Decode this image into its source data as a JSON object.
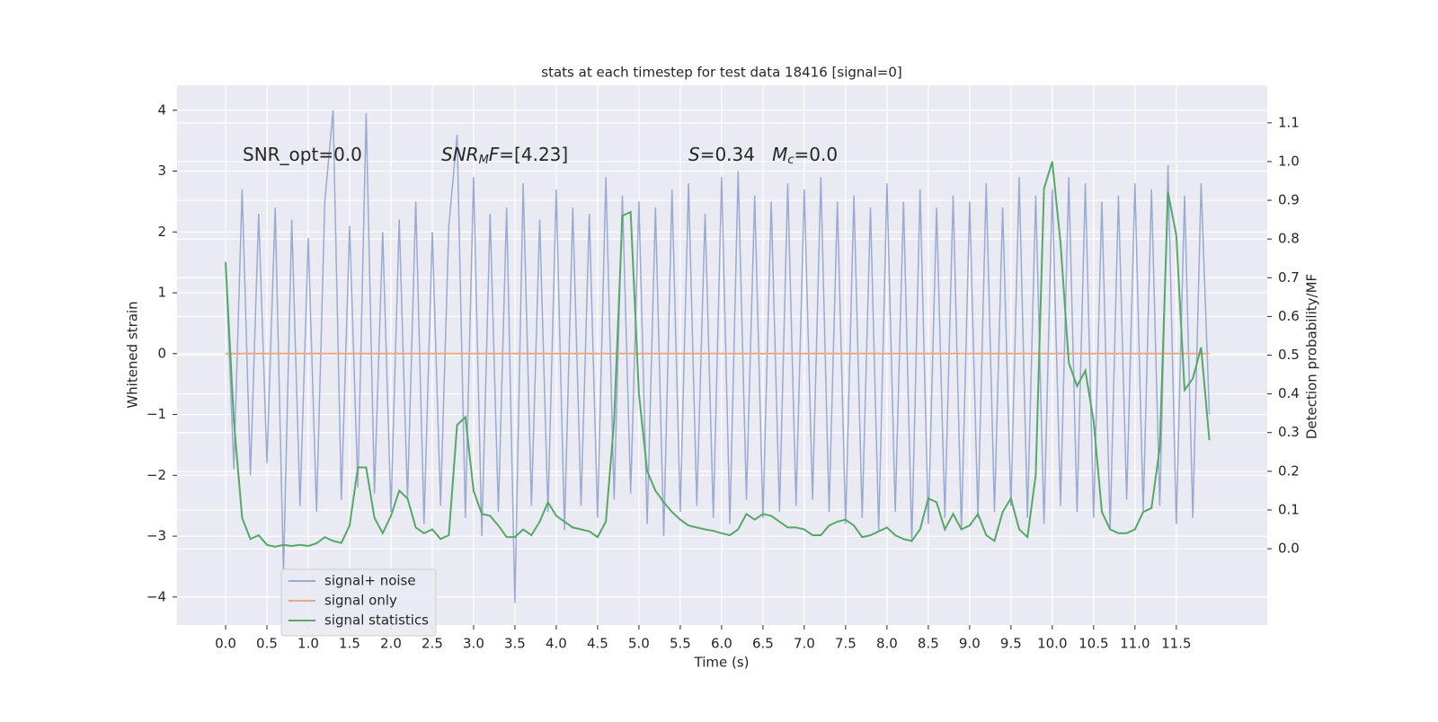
{
  "chart_data": {
    "type": "line",
    "title": "stats at each timestep for test data 18416 [signal=0]",
    "xlabel": "Time (s)",
    "ylabel": "Whitened strain",
    "y2label": "Detection probability/MF",
    "annotations": [
      {
        "parts": [
          {
            "t": "SNR_opt=0.0"
          }
        ]
      },
      {
        "parts": [
          {
            "t": "SNR",
            "italic": true
          },
          {
            "t": "M",
            "italic": true,
            "sub": true
          },
          {
            "t": "F",
            "italic": true
          },
          {
            "t": "=[4.23]"
          }
        ]
      },
      {
        "parts": [
          {
            "t": "S",
            "italic": true
          },
          {
            "t": "=0.34   "
          },
          {
            "t": "M",
            "italic": true
          },
          {
            "t": "c",
            "italic": true,
            "sub": true
          },
          {
            "t": "=0.0"
          }
        ]
      }
    ],
    "x": [
      0,
      0.1,
      0.2,
      0.3,
      0.4,
      0.5,
      0.6,
      0.7,
      0.8,
      0.9,
      1,
      1.1,
      1.2,
      1.3,
      1.4,
      1.5,
      1.6,
      1.7,
      1.8,
      1.9,
      2,
      2.1,
      2.2,
      2.3,
      2.4,
      2.5,
      2.6,
      2.7,
      2.8,
      2.9,
      3,
      3.1,
      3.2,
      3.3,
      3.4,
      3.5,
      3.6,
      3.7,
      3.8,
      3.9,
      4,
      4.1,
      4.2,
      4.3,
      4.4,
      4.5,
      4.6,
      4.7,
      4.8,
      4.9,
      5,
      5.1,
      5.2,
      5.3,
      5.4,
      5.5,
      5.6,
      5.7,
      5.8,
      5.9,
      6,
      6.1,
      6.2,
      6.3,
      6.4,
      6.5,
      6.6,
      6.7,
      6.8,
      6.9,
      7,
      7.1,
      7.2,
      7.3,
      7.4,
      7.5,
      7.6,
      7.7,
      7.8,
      7.9,
      8,
      8.1,
      8.2,
      8.3,
      8.4,
      8.5,
      8.6,
      8.7,
      8.8,
      8.9,
      9,
      9.1,
      9.2,
      9.3,
      9.4,
      9.5,
      9.6,
      9.7,
      9.8,
      9.9,
      10,
      10.1,
      10.2,
      10.3,
      10.4,
      10.5,
      10.6,
      10.7,
      10.8,
      10.9,
      11,
      11.1,
      11.2,
      11.3,
      11.4,
      11.5,
      11.6,
      11.7,
      11.8,
      11.9
    ],
    "series": [
      {
        "name": "signal+ noise",
        "color": "#9aaad2",
        "axis": "y",
        "values": [
          1.5,
          -1.9,
          2.7,
          -2.0,
          2.3,
          -1.8,
          2.4,
          -3.6,
          2.2,
          -2.5,
          1.9,
          -2.6,
          2.5,
          4.0,
          -2.4,
          2.1,
          -2.2,
          3.95,
          -2.3,
          2.0,
          -2.6,
          2.2,
          -2.4,
          2.5,
          -2.8,
          2.0,
          -2.5,
          2.1,
          3.6,
          -2.7,
          2.9,
          -3.0,
          2.3,
          -2.6,
          2.4,
          -4.1,
          2.8,
          -2.5,
          2.2,
          -2.6,
          2.7,
          -2.9,
          2.4,
          -2.5,
          2.3,
          -2.7,
          2.9,
          -2.4,
          2.6,
          -2.3,
          2.5,
          -2.8,
          2.4,
          -3.0,
          2.7,
          -2.6,
          2.8,
          -2.5,
          2.3,
          -2.7,
          2.9,
          -2.8,
          3.0,
          -2.4,
          2.6,
          -2.7,
          2.5,
          -2.6,
          2.8,
          -2.5,
          2.7,
          -2.4,
          2.9,
          -2.6,
          2.5,
          -2.8,
          2.6,
          -2.7,
          2.4,
          -2.9,
          2.8,
          -2.6,
          2.5,
          -3.1,
          2.7,
          -2.8,
          2.4,
          -2.7,
          2.6,
          -2.9,
          2.5,
          -2.7,
          2.8,
          -2.6,
          2.4,
          -2.5,
          2.9,
          -2.7,
          2.6,
          -2.8,
          2.7,
          -2.5,
          2.9,
          -2.6,
          2.8,
          -2.7,
          2.5,
          -2.9,
          2.6,
          -2.4,
          2.8,
          -2.6,
          2.7,
          -2.5,
          3.1,
          -2.8,
          2.6,
          -2.7,
          2.8,
          -1.0
        ]
      },
      {
        "name": "signal only",
        "color": "#e8a88a",
        "axis": "y",
        "values": [
          0,
          0,
          0,
          0,
          0,
          0,
          0,
          0,
          0,
          0,
          0,
          0,
          0,
          0,
          0,
          0,
          0,
          0,
          0,
          0,
          0,
          0,
          0,
          0,
          0,
          0,
          0,
          0,
          0,
          0,
          0,
          0,
          0,
          0,
          0,
          0,
          0,
          0,
          0,
          0,
          0,
          0,
          0,
          0,
          0,
          0,
          0,
          0,
          0,
          0,
          0,
          0,
          0,
          0,
          0,
          0,
          0,
          0,
          0,
          0,
          0,
          0,
          0,
          0,
          0,
          0,
          0,
          0,
          0,
          0,
          0,
          0,
          0,
          0,
          0,
          0,
          0,
          0,
          0,
          0,
          0,
          0,
          0,
          0,
          0,
          0,
          0,
          0,
          0,
          0,
          0,
          0,
          0,
          0,
          0,
          0,
          0,
          0,
          0,
          0,
          0,
          0,
          0,
          0,
          0,
          0,
          0,
          0,
          0,
          0,
          0,
          0,
          0,
          0,
          0,
          0,
          0,
          0,
          0,
          0
        ]
      },
      {
        "name": "signal statistics",
        "color": "#55a868",
        "axis": "y2",
        "values": [
          0.74,
          0.33,
          0.08,
          0.025,
          0.035,
          0.01,
          0.005,
          0.01,
          0.007,
          0.01,
          0.007,
          0.014,
          0.03,
          0.02,
          0.015,
          0.06,
          0.21,
          0.21,
          0.08,
          0.04,
          0.085,
          0.15,
          0.13,
          0.055,
          0.04,
          0.05,
          0.025,
          0.035,
          0.32,
          0.34,
          0.15,
          0.09,
          0.085,
          0.06,
          0.03,
          0.03,
          0.05,
          0.035,
          0.07,
          0.12,
          0.085,
          0.07,
          0.055,
          0.05,
          0.045,
          0.03,
          0.07,
          0.33,
          0.86,
          0.87,
          0.4,
          0.2,
          0.15,
          0.12,
          0.095,
          0.075,
          0.06,
          0.055,
          0.05,
          0.046,
          0.04,
          0.035,
          0.05,
          0.09,
          0.075,
          0.09,
          0.085,
          0.07,
          0.055,
          0.055,
          0.05,
          0.035,
          0.035,
          0.06,
          0.07,
          0.075,
          0.06,
          0.03,
          0.035,
          0.045,
          0.055,
          0.035,
          0.025,
          0.02,
          0.05,
          0.13,
          0.12,
          0.05,
          0.09,
          0.05,
          0.06,
          0.09,
          0.035,
          0.02,
          0.095,
          0.13,
          0.05,
          0.03,
          0.19,
          0.93,
          1.0,
          0.79,
          0.48,
          0.42,
          0.46,
          0.33,
          0.095,
          0.05,
          0.04,
          0.04,
          0.05,
          0.095,
          0.105,
          0.26,
          0.92,
          0.81,
          0.41,
          0.44,
          0.52,
          0.28
        ]
      }
    ],
    "xlim": [
      -0.587,
      12.6
    ],
    "ylim": [
      -4.46,
      4.41
    ],
    "y2lim": [
      -0.197,
      1.197
    ],
    "xticks": [
      {
        "value": 0,
        "label": "0.0"
      },
      0.5,
      {
        "value": 1,
        "label": "1.0"
      },
      1.5,
      {
        "value": 2,
        "label": "2.0"
      },
      2.5,
      {
        "value": 3,
        "label": "3.0"
      },
      3.5,
      {
        "value": 4,
        "label": "4.0"
      },
      4.5,
      {
        "value": 5,
        "label": "5.0"
      },
      5.5,
      {
        "value": 6,
        "label": "6.0"
      },
      6.5,
      {
        "value": 7,
        "label": "7.0"
      },
      7.5,
      {
        "value": 8,
        "label": "8.0"
      },
      8.5,
      {
        "value": 9,
        "label": "9.0"
      },
      9.5,
      {
        "value": 10,
        "label": "10.0"
      },
      10.5,
      {
        "value": 11,
        "label": "11.0"
      },
      11.5
    ],
    "yticks": [
      {
        "value": -4,
        "label": "−4"
      },
      {
        "value": -3,
        "label": "−3"
      },
      {
        "value": -2,
        "label": "−2"
      },
      {
        "value": -1,
        "label": "−1"
      },
      0,
      1,
      2,
      3,
      4
    ],
    "y2ticks": [
      {
        "value": 0,
        "label": "0.0"
      },
      0.1,
      0.2,
      0.3,
      0.4,
      0.5,
      0.6,
      0.7,
      0.8,
      0.9,
      {
        "value": 1,
        "label": "1.0"
      },
      1.1
    ],
    "grid": true,
    "legend": "lower left"
  }
}
